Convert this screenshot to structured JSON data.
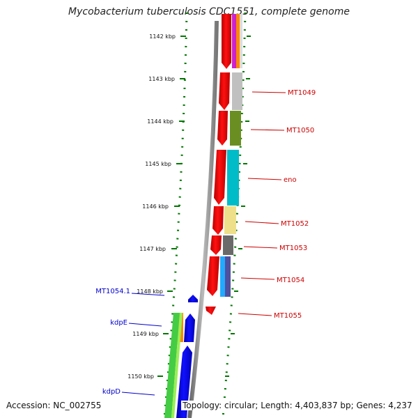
{
  "title": "Mycobacterium tuberculosis CDC1551, complete genome",
  "footer": {
    "accession": "Accession: NC_002755",
    "summary": "Topology: circular; Length: 4,403,837 bp; Genes: 4,237"
  },
  "scale_ticks": [
    "1142 kbp",
    "1143 kbp",
    "1144 kbp",
    "1145 kbp",
    "1146 kbp",
    "1147 kbp",
    "1148 kbp",
    "1149 kbp",
    "1150 kbp"
  ],
  "genes_forward": [
    "MT1049",
    "MT1050",
    "eno",
    "MT1052",
    "MT1053",
    "MT1054",
    "MT1055"
  ],
  "genes_reverse": [
    "MT1054.1",
    "kdpE",
    "kdpD"
  ],
  "colors": {
    "forward_strand": "#ff0000",
    "reverse_strand": "#0000ff",
    "forward_label": "#cc0000",
    "reverse_label": "#0000cc",
    "scale": "#007700",
    "backbone": "#888888"
  }
}
